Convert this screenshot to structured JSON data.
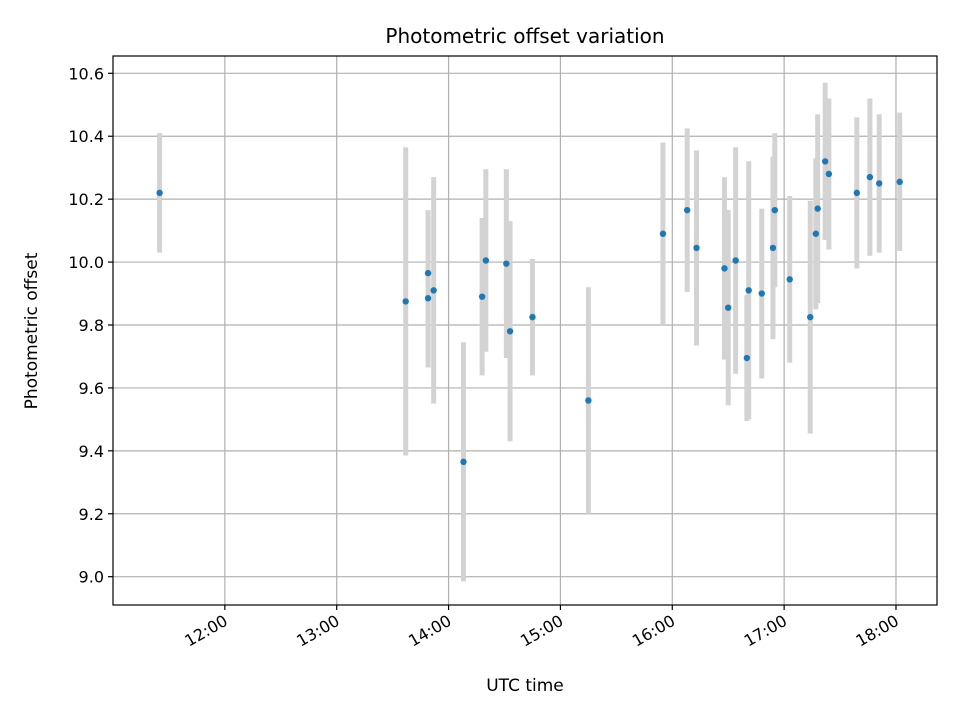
{
  "chart_data": {
    "type": "scatter",
    "title": "Photometric offset variation",
    "xlabel": "UTC time",
    "ylabel": "Photometric offset",
    "grid": true,
    "x_axis": "time",
    "xlim": [
      "11:00",
      "18:22"
    ],
    "ylim": [
      8.91,
      10.655
    ],
    "xticks": [
      "12:00",
      "13:00",
      "14:00",
      "15:00",
      "16:00",
      "17:00",
      "18:00"
    ],
    "yticks": [
      "9.0",
      "9.2",
      "9.4",
      "9.6",
      "9.8",
      "10.0",
      "10.2",
      "10.4",
      "10.6"
    ],
    "colors": {
      "marker": "#1f77b4",
      "errorbar": "#d3d3d3",
      "grid": "#b0b0b0"
    },
    "series": [
      {
        "points": [
          {
            "x": "11:25",
            "y": 10.22,
            "yerr": 0.19
          },
          {
            "x": "13:37",
            "y": 9.875,
            "yerr": 0.49
          },
          {
            "x": "13:49",
            "y": 9.885,
            "yerr": 0.22
          },
          {
            "x": "13:49",
            "y": 9.965,
            "yerr": 0.2
          },
          {
            "x": "13:52",
            "y": 9.91,
            "yerr": 0.36
          },
          {
            "x": "14:08",
            "y": 9.365,
            "yerr": 0.38
          },
          {
            "x": "14:18",
            "y": 9.89,
            "yerr": 0.25
          },
          {
            "x": "14:20",
            "y": 10.005,
            "yerr": 0.29
          },
          {
            "x": "14:31",
            "y": 9.995,
            "yerr": 0.3
          },
          {
            "x": "14:33",
            "y": 9.78,
            "yerr": 0.35
          },
          {
            "x": "14:45",
            "y": 9.825,
            "yerr": 0.185
          },
          {
            "x": "15:15",
            "y": 9.56,
            "yerr": 0.36
          },
          {
            "x": "15:55",
            "y": 10.09,
            "yerr": 0.29
          },
          {
            "x": "16:08",
            "y": 10.165,
            "yerr": 0.26
          },
          {
            "x": "16:13",
            "y": 10.045,
            "yerr": 0.31
          },
          {
            "x": "16:28",
            "y": 9.98,
            "yerr": 0.29
          },
          {
            "x": "16:30",
            "y": 9.855,
            "yerr": 0.31
          },
          {
            "x": "16:34",
            "y": 10.005,
            "yerr": 0.36
          },
          {
            "x": "16:40",
            "y": 9.695,
            "yerr": 0.2
          },
          {
            "x": "16:41",
            "y": 9.91,
            "yerr": 0.41
          },
          {
            "x": "16:48",
            "y": 9.9,
            "yerr": 0.27
          },
          {
            "x": "16:54",
            "y": 10.045,
            "yerr": 0.29
          },
          {
            "x": "16:55",
            "y": 10.165,
            "yerr": 0.245
          },
          {
            "x": "17:03",
            "y": 9.945,
            "yerr": 0.265
          },
          {
            "x": "17:14",
            "y": 9.825,
            "yerr": 0.37
          },
          {
            "x": "17:17",
            "y": 10.09,
            "yerr": 0.24
          },
          {
            "x": "17:18",
            "y": 10.17,
            "yerr": 0.3
          },
          {
            "x": "17:22",
            "y": 10.32,
            "yerr": 0.25
          },
          {
            "x": "17:24",
            "y": 10.28,
            "yerr": 0.24
          },
          {
            "x": "17:39",
            "y": 10.22,
            "yerr": 0.24
          },
          {
            "x": "17:46",
            "y": 10.27,
            "yerr": 0.25
          },
          {
            "x": "17:51",
            "y": 10.25,
            "yerr": 0.22
          },
          {
            "x": "18:02",
            "y": 10.255,
            "yerr": 0.22
          }
        ]
      }
    ]
  }
}
